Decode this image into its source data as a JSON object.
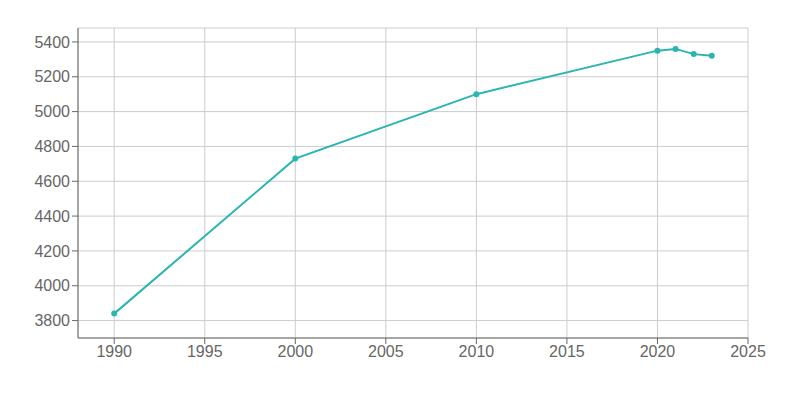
{
  "chart_data": {
    "type": "line",
    "x": [
      1990,
      2000,
      2010,
      2020,
      2021,
      2022,
      2023
    ],
    "values": [
      3840,
      4730,
      5100,
      5350,
      5360,
      5330,
      5320
    ],
    "color": "#2ab5b0",
    "marker": "circle",
    "xlim": [
      1988,
      2025
    ],
    "ylim": [
      3700,
      5480
    ],
    "xticks": [
      1990,
      1995,
      2000,
      2005,
      2010,
      2015,
      2020,
      2025
    ],
    "yticks": [
      3800,
      4000,
      4200,
      4400,
      4600,
      4800,
      5000,
      5200,
      5400
    ],
    "grid": true
  }
}
